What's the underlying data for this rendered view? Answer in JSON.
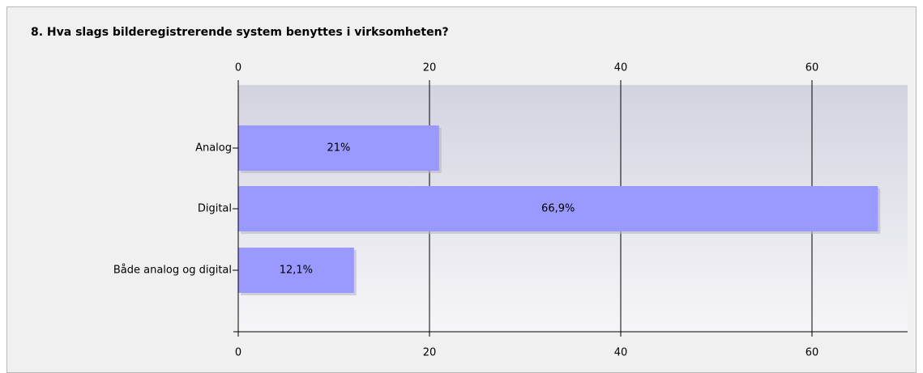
{
  "chart_data": {
    "type": "bar",
    "orientation": "horizontal",
    "title": "8. Hva slags bilderegistrerende system benyttes i virksomheten?",
    "categories": [
      "Analog",
      "Digital",
      "Både analog og digital"
    ],
    "values": [
      21,
      66.9,
      12.1
    ],
    "value_labels": [
      "21%",
      "66,9%",
      "12,1%"
    ],
    "color": "#9999ff",
    "xlim": [
      0,
      70
    ],
    "xticks": [
      0,
      20,
      40,
      60
    ],
    "grid": true
  }
}
